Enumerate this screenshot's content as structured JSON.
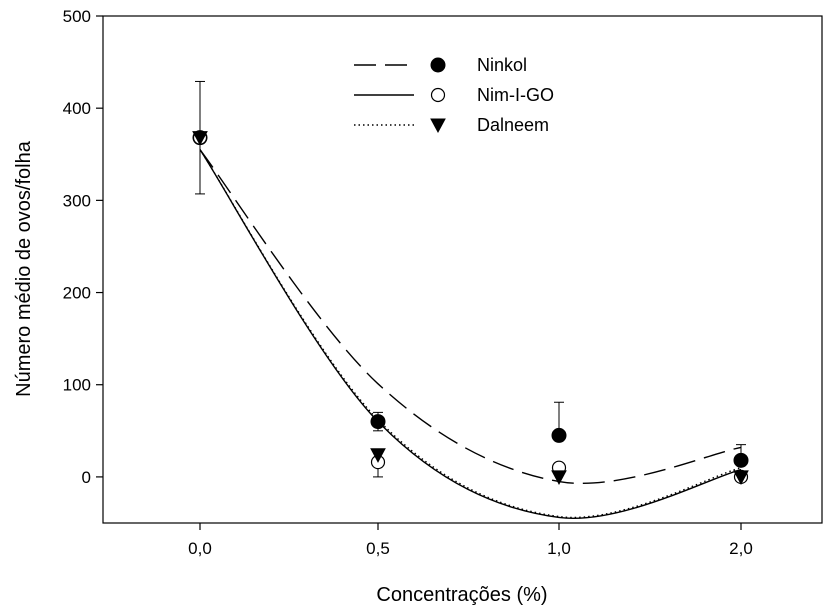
{
  "chart_data": {
    "type": "scatter",
    "xlabel": "Concentrações (%)",
    "ylabel": "Número médio de ovos/folha",
    "categories": [
      "0,0",
      "0,5",
      "1,0",
      "2,0"
    ],
    "ylim": [
      -50,
      500
    ],
    "yticks": [
      0,
      100,
      200,
      300,
      400,
      500
    ],
    "grid": false,
    "legend_position": "top",
    "series": [
      {
        "name": "Ninkol",
        "marker": "filled-circle",
        "line_style": "long-dash",
        "values": [
          368,
          60,
          45,
          18
        ],
        "error_upper": [
          429,
          70,
          81,
          35
        ],
        "error_lower": [
          307,
          50,
          null,
          null
        ],
        "fit": [
          355,
          101,
          -5,
          32
        ]
      },
      {
        "name": "Nim-I-GO",
        "marker": "open-circle",
        "line_style": "solid",
        "values": [
          368,
          16,
          10,
          0
        ],
        "error_upper": [
          null,
          null,
          null,
          null
        ],
        "error_lower": [
          null,
          0,
          null,
          null
        ],
        "fit": [
          355,
          60,
          -44,
          8
        ]
      },
      {
        "name": "Dalneem",
        "marker": "filled-triangle-down",
        "line_style": "dotted",
        "values": [
          368,
          24,
          0,
          0
        ],
        "error_upper": [
          null,
          null,
          null,
          null
        ],
        "error_lower": [
          null,
          null,
          null,
          null
        ],
        "fit": [
          355,
          62,
          -43,
          10
        ]
      }
    ]
  }
}
